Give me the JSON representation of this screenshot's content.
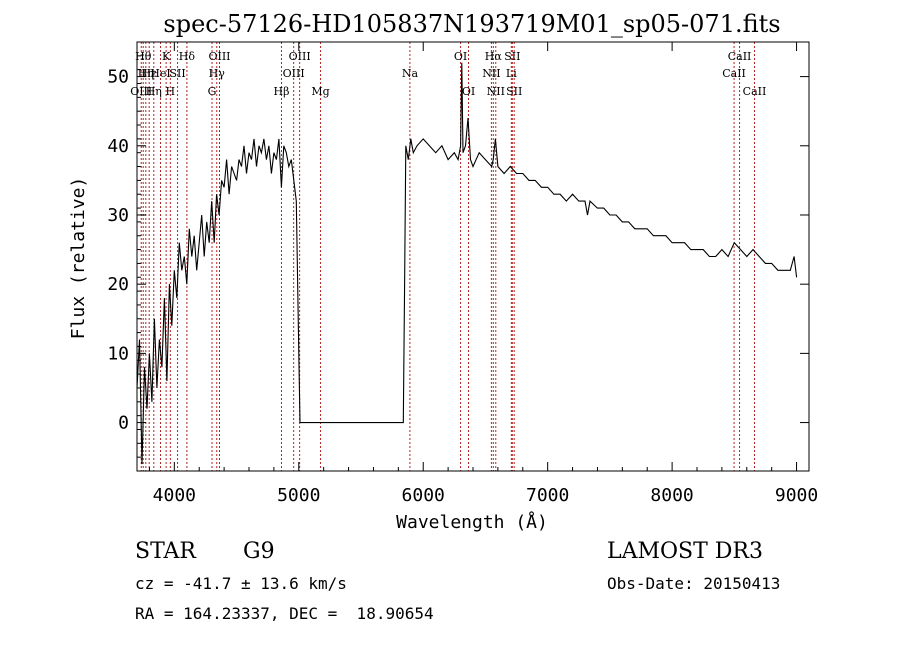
{
  "chart_data": {
    "type": "line",
    "title": "spec-57126-HD105837N193719M01_sp05-071.fits",
    "xlabel": "Wavelength (Å)",
    "ylabel": "Flux (relative)",
    "xlim": [
      3700,
      9100
    ],
    "ylim": [
      -7,
      55
    ],
    "x_ticks": [
      4000,
      5000,
      6000,
      7000,
      8000,
      9000
    ],
    "y_ticks": [
      0,
      10,
      20,
      30,
      40,
      50
    ],
    "grid": false,
    "series": [
      {
        "x": [
          3700,
          3720,
          3740,
          3760,
          3780,
          3800,
          3820,
          3840,
          3860,
          3880,
          3900,
          3920,
          3940,
          3960,
          3980,
          4000,
          4020,
          4040,
          4060,
          4080,
          4100,
          4120,
          4140,
          4160,
          4180,
          4200,
          4220,
          4240,
          4260,
          4280,
          4300,
          4320,
          4340,
          4360,
          4380,
          4400,
          4420,
          4440,
          4460,
          4480,
          4500,
          4520,
          4540,
          4560,
          4580,
          4600,
          4620,
          4640,
          4660,
          4680,
          4700,
          4720,
          4740,
          4760,
          4780,
          4800,
          4820,
          4840,
          4860,
          4880,
          4900,
          4920,
          4940,
          4960,
          4980,
          5000,
          5010,
          5050,
          5200,
          5400,
          5600,
          5800,
          5840,
          5850,
          5860,
          5880,
          5900,
          5920,
          5950,
          6000,
          6050,
          6100,
          6150,
          6200,
          6250,
          6280,
          6300,
          6310,
          6320,
          6340,
          6360,
          6380,
          6400,
          6450,
          6500,
          6550,
          6562,
          6580,
          6600,
          6650,
          6700,
          6750,
          6800,
          6850,
          6900,
          6950,
          7000,
          7050,
          7100,
          7150,
          7200,
          7250,
          7300,
          7320,
          7340,
          7400,
          7450,
          7500,
          7550,
          7600,
          7650,
          7700,
          7750,
          7800,
          7850,
          7900,
          7950,
          8000,
          8050,
          8100,
          8150,
          8200,
          8250,
          8300,
          8350,
          8400,
          8450,
          8500,
          8550,
          8600,
          8650,
          8700,
          8750,
          8800,
          8850,
          8900,
          8950,
          8980,
          9000
        ],
        "values": [
          5,
          12,
          -6,
          8,
          2,
          10,
          3,
          15,
          5,
          12,
          8,
          18,
          6,
          20,
          14,
          22,
          18,
          26,
          22,
          24,
          20,
          28,
          24,
          27,
          22,
          26,
          30,
          24,
          29,
          26,
          32,
          26,
          33,
          30,
          35,
          34,
          38,
          33,
          37,
          36,
          35,
          38,
          37,
          40,
          36,
          39,
          38,
          41,
          37,
          40,
          39,
          41,
          38,
          40,
          36,
          39,
          38,
          41,
          34,
          40,
          39,
          37,
          38,
          35,
          32,
          10,
          0,
          0,
          0,
          0,
          0,
          0,
          0,
          20,
          40,
          38,
          41,
          39,
          40,
          41,
          40,
          39,
          40,
          38,
          39,
          38,
          40,
          52,
          39,
          40,
          44,
          38,
          37,
          39,
          38,
          37,
          38,
          41,
          37,
          36,
          37,
          36,
          36,
          35,
          35,
          34,
          34,
          33,
          33,
          32,
          33,
          32,
          32,
          30,
          32,
          31,
          31,
          30,
          30,
          29,
          29,
          28,
          28,
          28,
          27,
          27,
          27,
          26,
          26,
          26,
          25,
          25,
          25,
          24,
          24,
          25,
          24,
          26,
          25,
          24,
          25,
          24,
          23,
          23,
          22,
          22,
          22,
          24,
          21
        ]
      }
    ],
    "line_markers": [
      {
        "x": 3734,
        "row": 3,
        "label": "OIII"
      },
      {
        "x": 3750,
        "row": 1,
        "label": "Hθ"
      },
      {
        "x": 3771,
        "row": 2,
        "label": "Hη"
      },
      {
        "x": 3798,
        "row": 2,
        "label": "Hε"
      },
      {
        "x": 3835,
        "row": 3,
        "label": "Hη"
      },
      {
        "x": 3889,
        "row": 2,
        "label": "HeI"
      },
      {
        "x": 3934,
        "row": 1,
        "label": "K"
      },
      {
        "x": 3968,
        "row": 3,
        "label": "H"
      },
      {
        "x": 4026,
        "row": 2,
        "label": "SII"
      },
      {
        "x": 4101,
        "row": 1,
        "label": "Hδ"
      },
      {
        "x": 4303,
        "row": 3,
        "label": "G"
      },
      {
        "x": 4341,
        "row": 2,
        "label": "Hγ"
      },
      {
        "x": 4363,
        "row": 1,
        "label": "OIII"
      },
      {
        "x": 4861,
        "row": 3,
        "label": "Hβ"
      },
      {
        "x": 4959,
        "row": 2,
        "label": "OIII"
      },
      {
        "x": 5007,
        "row": 1,
        "label": "OIII"
      },
      {
        "x": 5175,
        "row": 3,
        "label": "Mg"
      },
      {
        "x": 5893,
        "row": 2,
        "label": "Na"
      },
      {
        "x": 6300,
        "row": 1,
        "label": "OI"
      },
      {
        "x": 6364,
        "row": 3,
        "label": "OI"
      },
      {
        "x": 6548,
        "row": 2,
        "label": "NII"
      },
      {
        "x": 6563,
        "row": 1,
        "label": "Hα"
      },
      {
        "x": 6583,
        "row": 3,
        "label": "NII"
      },
      {
        "x": 6708,
        "row": 2,
        "label": "Li"
      },
      {
        "x": 6716,
        "row": 1,
        "label": "SII"
      },
      {
        "x": 6731,
        "row": 3,
        "label": "SII"
      },
      {
        "x": 8498,
        "row": 2,
        "label": "CaII"
      },
      {
        "x": 8542,
        "row": 1,
        "label": "CaII"
      },
      {
        "x": 8662,
        "row": 3,
        "label": "CaII"
      }
    ]
  },
  "info": {
    "class_label": "STAR",
    "subclass": "G9",
    "survey": "LAMOST DR3",
    "redshift_line": "cz = -41.7 ± 13.6 km/s",
    "obs_date_line": "Obs-Date: 20150413",
    "coords_line": "RA = 164.23337, DEC =  18.90654"
  }
}
